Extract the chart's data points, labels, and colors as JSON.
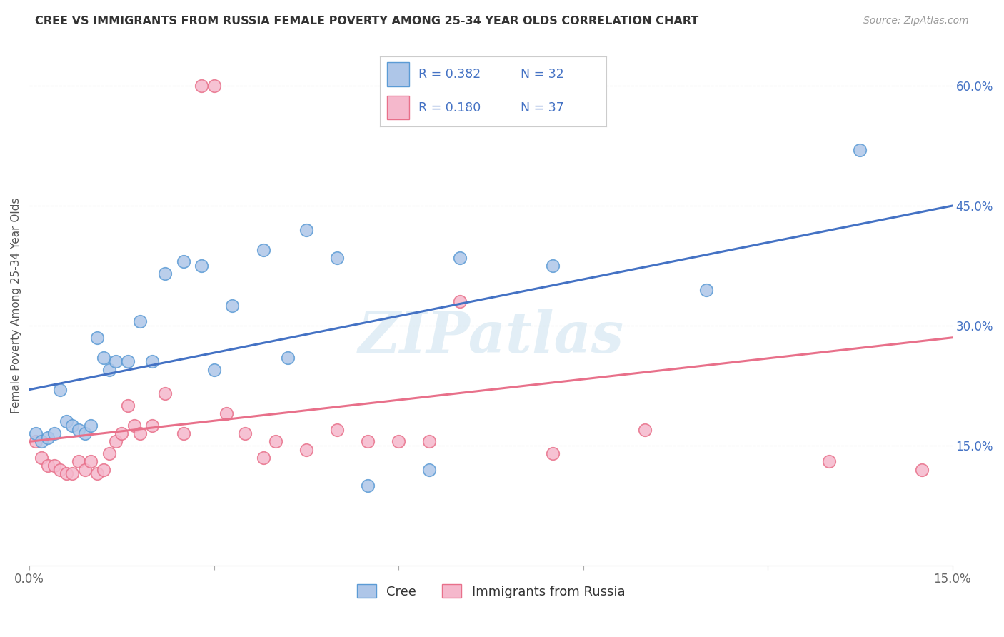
{
  "title": "CREE VS IMMIGRANTS FROM RUSSIA FEMALE POVERTY AMONG 25-34 YEAR OLDS CORRELATION CHART",
  "source": "Source: ZipAtlas.com",
  "ylabel": "Female Poverty Among 25-34 Year Olds",
  "xmin": 0.0,
  "xmax": 0.15,
  "ymin": 0.0,
  "ymax": 0.65,
  "xticks": [
    0.0,
    0.03,
    0.06,
    0.09,
    0.12,
    0.15
  ],
  "xtick_labels": [
    "0.0%",
    "",
    "",
    "",
    "",
    "15.0%"
  ],
  "ytick_positions": [
    0.15,
    0.3,
    0.45,
    0.6
  ],
  "ytick_labels": [
    "15.0%",
    "30.0%",
    "45.0%",
    "60.0%"
  ],
  "watermark": "ZIPatlas",
  "cree_color": "#aec6e8",
  "russia_color": "#f5b8cc",
  "cree_edge_color": "#5b9bd5",
  "russia_edge_color": "#e8708a",
  "cree_line_color": "#4472c4",
  "russia_line_color": "#e8708a",
  "cree_R": 0.382,
  "cree_N": 32,
  "russia_R": 0.18,
  "russia_N": 37,
  "cree_x": [
    0.001,
    0.002,
    0.003,
    0.004,
    0.005,
    0.006,
    0.007,
    0.008,
    0.009,
    0.01,
    0.011,
    0.012,
    0.013,
    0.014,
    0.016,
    0.018,
    0.02,
    0.022,
    0.025,
    0.028,
    0.03,
    0.033,
    0.038,
    0.042,
    0.045,
    0.05,
    0.055,
    0.065,
    0.07,
    0.085,
    0.11,
    0.135
  ],
  "cree_y": [
    0.165,
    0.155,
    0.16,
    0.165,
    0.22,
    0.18,
    0.175,
    0.17,
    0.165,
    0.175,
    0.285,
    0.26,
    0.245,
    0.255,
    0.255,
    0.305,
    0.255,
    0.365,
    0.38,
    0.375,
    0.245,
    0.325,
    0.395,
    0.26,
    0.42,
    0.385,
    0.1,
    0.12,
    0.385,
    0.375,
    0.345,
    0.52
  ],
  "russia_x": [
    0.001,
    0.002,
    0.003,
    0.004,
    0.005,
    0.006,
    0.007,
    0.008,
    0.009,
    0.01,
    0.011,
    0.012,
    0.013,
    0.014,
    0.015,
    0.016,
    0.017,
    0.018,
    0.02,
    0.022,
    0.025,
    0.028,
    0.03,
    0.032,
    0.035,
    0.038,
    0.04,
    0.045,
    0.05,
    0.055,
    0.06,
    0.065,
    0.07,
    0.085,
    0.1,
    0.13,
    0.145
  ],
  "russia_y": [
    0.155,
    0.135,
    0.125,
    0.125,
    0.12,
    0.115,
    0.115,
    0.13,
    0.12,
    0.13,
    0.115,
    0.12,
    0.14,
    0.155,
    0.165,
    0.2,
    0.175,
    0.165,
    0.175,
    0.215,
    0.165,
    0.6,
    0.6,
    0.19,
    0.165,
    0.135,
    0.155,
    0.145,
    0.17,
    0.155,
    0.155,
    0.155,
    0.33,
    0.14,
    0.17,
    0.13,
    0.12
  ],
  "background_color": "#ffffff",
  "grid_color": "#d0d0d0",
  "title_color": "#333333",
  "legend_text_color": "#4472c4",
  "legend_label_cree": "Cree",
  "legend_label_russia": "Immigrants from Russia"
}
